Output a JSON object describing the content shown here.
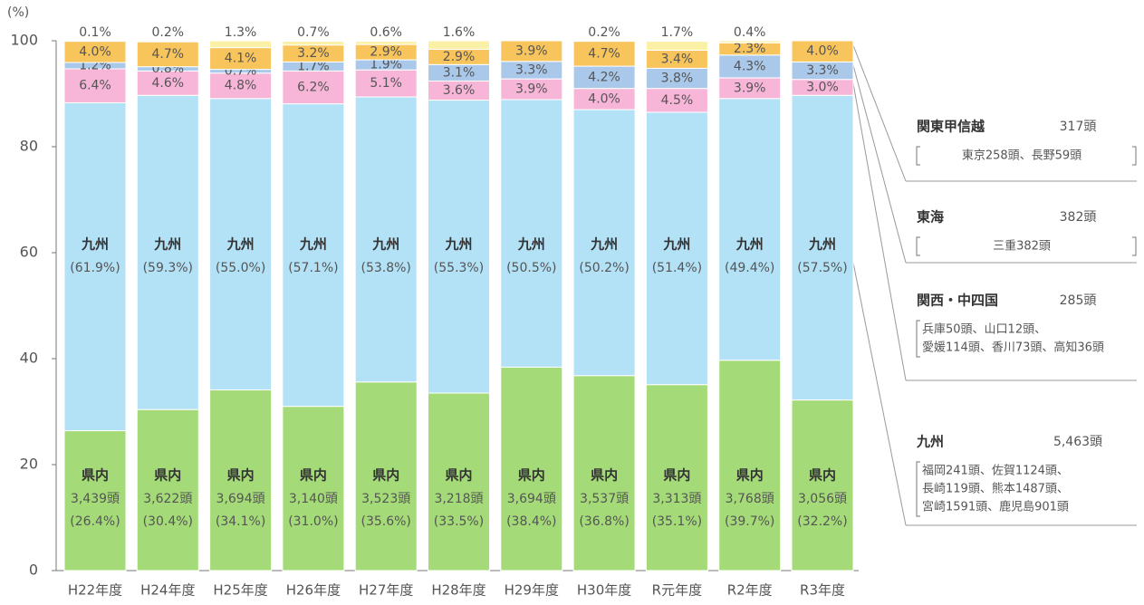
{
  "chart_data": {
    "type": "stacked_bar",
    "y_unit": "(%)",
    "categories": [
      "H22年度",
      "H24年度",
      "H25年度",
      "H26年度",
      "H27年度",
      "H28年度",
      "H29年度",
      "H30年度",
      "R元年度",
      "R2年度",
      "R3年度"
    ],
    "ylim": [
      0,
      100
    ],
    "yticks": [
      0,
      20,
      40,
      60,
      80,
      100
    ],
    "series": [
      {
        "name": "県内",
        "color": "#a4db78",
        "values": [
          26.4,
          30.4,
          34.1,
          31.0,
          35.6,
          33.5,
          38.4,
          36.8,
          35.1,
          39.7,
          32.2
        ],
        "value_labels": [
          "(26.4%)",
          "(30.4%)",
          "(34.1%)",
          "(31.0%)",
          "(35.6%)",
          "(33.5%)",
          "(38.4%)",
          "(36.8%)",
          "(35.1%)",
          "(39.7%)",
          "(32.2%)"
        ],
        "counts": [
          "3,439頭",
          "3,622頭",
          "3,694頭",
          "3,140頭",
          "3,523頭",
          "3,218頭",
          "3,694頭",
          "3,537頭",
          "3,313頭",
          "3,768頭",
          "3,056頭"
        ]
      },
      {
        "name": "九州",
        "color": "#b3e1f6",
        "values": [
          61.9,
          59.3,
          55.0,
          57.1,
          53.8,
          55.3,
          50.5,
          50.2,
          51.4,
          49.4,
          57.5
        ],
        "value_labels": [
          "(61.9%)",
          "(59.3%)",
          "(55.0%)",
          "(57.1%)",
          "(53.8%)",
          "(55.3%)",
          "(50.5%)",
          "(50.2%)",
          "(51.4%)",
          "(49.4%)",
          "(57.5%)"
        ]
      },
      {
        "name": "関西・中四国",
        "color": "#f7b5d8",
        "values": [
          6.4,
          4.6,
          4.8,
          6.2,
          5.1,
          3.6,
          3.9,
          4.0,
          4.5,
          3.9,
          3.0
        ],
        "value_labels": [
          "6.4%",
          "4.6%",
          "4.8%",
          "6.2%",
          "5.1%",
          "3.6%",
          "3.9%",
          "4.0%",
          "4.5%",
          "3.9%",
          "3.0%"
        ]
      },
      {
        "name": "関東甲信越",
        "color": "#a9c8ea",
        "values": [
          1.2,
          0.8,
          0.7,
          1.7,
          1.9,
          3.1,
          3.3,
          4.2,
          3.8,
          4.3,
          3.3
        ],
        "value_labels": [
          "1.2%",
          "0.8%",
          "0.7%",
          "1.7%",
          "1.9%",
          "3.1%",
          "3.3%",
          "4.2%",
          "3.8%",
          "4.3%",
          "3.3%"
        ]
      },
      {
        "name": "東海",
        "color": "#f8c45c",
        "values": [
          4.0,
          4.7,
          4.1,
          3.2,
          2.9,
          2.9,
          3.9,
          4.7,
          3.4,
          2.3,
          4.0
        ],
        "value_labels": [
          "4.0%",
          "4.7%",
          "4.1%",
          "3.2%",
          "2.9%",
          "2.9%",
          "3.9%",
          "4.7%",
          "3.4%",
          "2.3%",
          "4.0%"
        ]
      },
      {
        "color": "#fbf1a6",
        "values": [
          0.1,
          0.2,
          1.3,
          0.7,
          0.6,
          1.6,
          null,
          0.2,
          1.7,
          0.4,
          null
        ],
        "value_labels": [
          "0.1%",
          "0.2%",
          "1.3%",
          "0.7%",
          "0.6%",
          "1.6%",
          null,
          "0.2%",
          "1.7%",
          "0.4%",
          null
        ]
      }
    ],
    "notes": [
      {
        "series": 3,
        "total": "317頭",
        "details": [
          "東京258頭、長野59頭"
        ]
      },
      {
        "series": 4,
        "total": "382頭",
        "details": [
          "三重382頭"
        ]
      },
      {
        "series": 2,
        "total": "285頭",
        "details": [
          "兵庫50頭、山口12頭、",
          "愛媛114頭、香川73頭、高知36頭"
        ]
      },
      {
        "series": 1,
        "total": "5,463頭",
        "details": [
          "福岡241頭、佐賀1124頭、",
          "長崎119頭、熊本1487頭、",
          "宮崎1591頭、鹿児島901頭"
        ]
      }
    ]
  }
}
